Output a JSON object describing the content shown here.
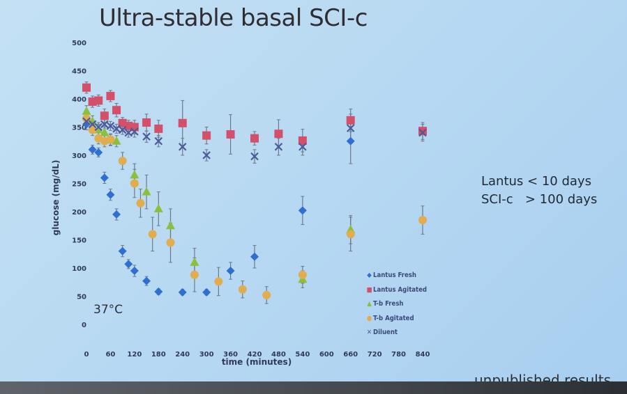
{
  "slide": {
    "title": "Ultra-stable basal SCI-c",
    "side_notes": [
      "Lantus < 10 days",
      "SCI-c   > 100 days"
    ],
    "footnote": "unpublished results",
    "temperature_label": "37°C"
  },
  "colors": {
    "lantus_fresh": "#2f6fd0",
    "lantus_agitated": "#d4506a",
    "tb_fresh": "#8cbf3c",
    "tb_agitated": "#e1ad4e",
    "diluent": "#4a5a9a",
    "axis_text": "#2f3a5a",
    "errorbar": "#6a7a8a"
  },
  "chart_data": {
    "type": "scatter",
    "xlabel": "time (minutes)",
    "ylabel": "glucose (mg/dL)",
    "xlim": [
      0,
      840
    ],
    "ylim": [
      0,
      500
    ],
    "xticks": [
      0,
      60,
      120,
      180,
      240,
      300,
      360,
      420,
      480,
      540,
      600,
      660,
      720,
      780,
      840
    ],
    "yticks": [
      0,
      50,
      100,
      150,
      200,
      250,
      300,
      350,
      400,
      450,
      500
    ],
    "grid": false,
    "legend_position": "bottom-right",
    "series": [
      {
        "name": "Lantus Fresh",
        "marker": "diamond",
        "color_key": "lantus_fresh",
        "points": [
          {
            "x": 0,
            "y": 355,
            "err": 10
          },
          {
            "x": 15,
            "y": 310,
            "err": 8
          },
          {
            "x": 30,
            "y": 305,
            "err": 8
          },
          {
            "x": 45,
            "y": 260,
            "err": 10
          },
          {
            "x": 60,
            "y": 230,
            "err": 10
          },
          {
            "x": 75,
            "y": 195,
            "err": 10
          },
          {
            "x": 90,
            "y": 130,
            "err": 10
          },
          {
            "x": 105,
            "y": 107,
            "err": 8
          },
          {
            "x": 120,
            "y": 95,
            "err": 10
          },
          {
            "x": 150,
            "y": 77,
            "err": 8
          },
          {
            "x": 180,
            "y": 58,
            "err": 5
          },
          {
            "x": 240,
            "y": 57,
            "err": 5
          },
          {
            "x": 300,
            "y": 57,
            "err": 5
          },
          {
            "x": 360,
            "y": 95,
            "err": 15
          },
          {
            "x": 420,
            "y": 120,
            "err": 20
          },
          {
            "x": 540,
            "y": 202,
            "err": 25
          },
          {
            "x": 660,
            "y": 325,
            "err": 40
          }
        ]
      },
      {
        "name": "Lantus Agitated",
        "marker": "square",
        "color_key": "lantus_agitated",
        "points": [
          {
            "x": 0,
            "y": 420,
            "err": 10
          },
          {
            "x": 15,
            "y": 395,
            "err": 10
          },
          {
            "x": 30,
            "y": 397,
            "err": 10
          },
          {
            "x": 45,
            "y": 370,
            "err": 12
          },
          {
            "x": 60,
            "y": 405,
            "err": 10
          },
          {
            "x": 75,
            "y": 380,
            "err": 12
          },
          {
            "x": 90,
            "y": 357,
            "err": 10
          },
          {
            "x": 105,
            "y": 352,
            "err": 10
          },
          {
            "x": 120,
            "y": 350,
            "err": 12
          },
          {
            "x": 150,
            "y": 358,
            "err": 15
          },
          {
            "x": 180,
            "y": 347,
            "err": 15
          },
          {
            "x": 240,
            "y": 357,
            "err": 40
          },
          {
            "x": 300,
            "y": 335,
            "err": 15
          },
          {
            "x": 360,
            "y": 337,
            "err": 35
          },
          {
            "x": 420,
            "y": 330,
            "err": 12
          },
          {
            "x": 480,
            "y": 338,
            "err": 25
          },
          {
            "x": 540,
            "y": 326,
            "err": 20
          },
          {
            "x": 660,
            "y": 362,
            "err": 20
          },
          {
            "x": 840,
            "y": 343,
            "err": 15
          }
        ]
      },
      {
        "name": "T-b Fresh",
        "marker": "triangle",
        "color_key": "tb_fresh",
        "points": [
          {
            "x": 0,
            "y": 378,
            "err": 10
          },
          {
            "x": 15,
            "y": 360,
            "err": 10
          },
          {
            "x": 30,
            "y": 345,
            "err": 10
          },
          {
            "x": 45,
            "y": 340,
            "err": 10
          },
          {
            "x": 60,
            "y": 327,
            "err": 10
          },
          {
            "x": 75,
            "y": 325,
            "err": 10
          },
          {
            "x": 120,
            "y": 265,
            "err": 20
          },
          {
            "x": 150,
            "y": 235,
            "err": 30
          },
          {
            "x": 180,
            "y": 205,
            "err": 30
          },
          {
            "x": 210,
            "y": 175,
            "err": 30
          },
          {
            "x": 270,
            "y": 110,
            "err": 25
          },
          {
            "x": 540,
            "y": 80,
            "err": 15
          },
          {
            "x": 660,
            "y": 168,
            "err": 25
          }
        ]
      },
      {
        "name": "T-b Agitated",
        "marker": "circle",
        "color_key": "tb_agitated",
        "points": [
          {
            "x": 0,
            "y": 365,
            "err": 10
          },
          {
            "x": 15,
            "y": 345,
            "err": 10
          },
          {
            "x": 30,
            "y": 330,
            "err": 10
          },
          {
            "x": 45,
            "y": 325,
            "err": 10
          },
          {
            "x": 60,
            "y": 328,
            "err": 10
          },
          {
            "x": 90,
            "y": 290,
            "err": 15
          },
          {
            "x": 120,
            "y": 250,
            "err": 25
          },
          {
            "x": 135,
            "y": 215,
            "err": 25
          },
          {
            "x": 165,
            "y": 160,
            "err": 30
          },
          {
            "x": 210,
            "y": 145,
            "err": 35
          },
          {
            "x": 270,
            "y": 88,
            "err": 30
          },
          {
            "x": 330,
            "y": 76,
            "err": 25
          },
          {
            "x": 390,
            "y": 62,
            "err": 15
          },
          {
            "x": 450,
            "y": 52,
            "err": 15
          },
          {
            "x": 540,
            "y": 88,
            "err": 15
          },
          {
            "x": 660,
            "y": 160,
            "err": 30
          },
          {
            "x": 840,
            "y": 185,
            "err": 25
          }
        ]
      },
      {
        "name": "Diluent",
        "marker": "x",
        "color_key": "diluent",
        "points": [
          {
            "x": 0,
            "y": 360,
            "err": 8
          },
          {
            "x": 15,
            "y": 355,
            "err": 8
          },
          {
            "x": 30,
            "y": 350,
            "err": 8
          },
          {
            "x": 45,
            "y": 355,
            "err": 8
          },
          {
            "x": 60,
            "y": 352,
            "err": 8
          },
          {
            "x": 75,
            "y": 347,
            "err": 8
          },
          {
            "x": 90,
            "y": 345,
            "err": 8
          },
          {
            "x": 105,
            "y": 340,
            "err": 8
          },
          {
            "x": 120,
            "y": 342,
            "err": 10
          },
          {
            "x": 150,
            "y": 333,
            "err": 10
          },
          {
            "x": 180,
            "y": 325,
            "err": 10
          },
          {
            "x": 240,
            "y": 315,
            "err": 15
          },
          {
            "x": 300,
            "y": 300,
            "err": 10
          },
          {
            "x": 420,
            "y": 298,
            "err": 12
          },
          {
            "x": 480,
            "y": 315,
            "err": 15
          },
          {
            "x": 540,
            "y": 315,
            "err": 15
          },
          {
            "x": 660,
            "y": 348,
            "err": 25
          },
          {
            "x": 840,
            "y": 340,
            "err": 15
          }
        ]
      }
    ]
  }
}
